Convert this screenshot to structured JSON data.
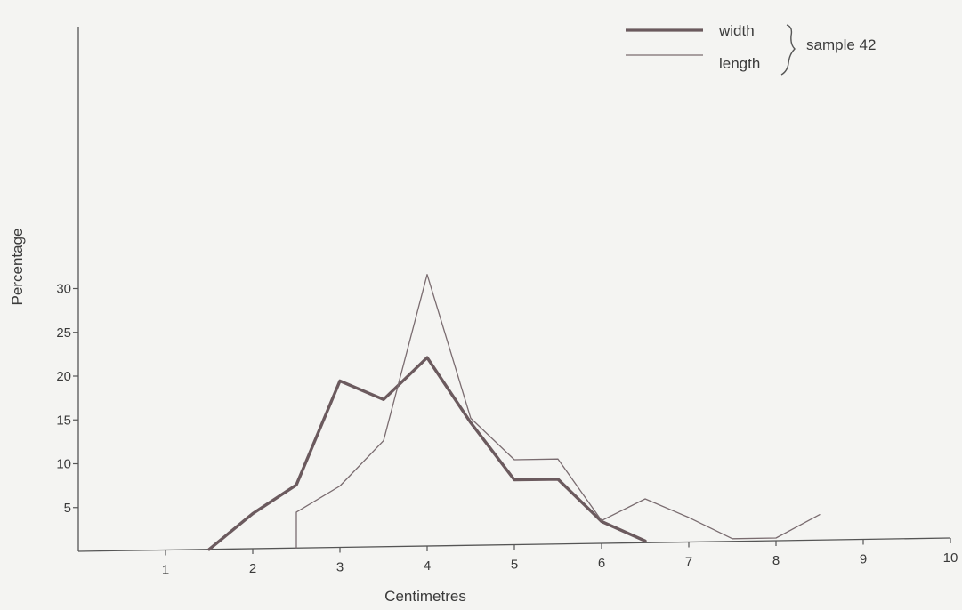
{
  "chart_data": {
    "type": "line",
    "xlabel": "Centimetres",
    "ylabel": "Percentage",
    "xlim": [
      0,
      10
    ],
    "ylim": [
      0,
      30
    ],
    "x_ticks": [
      "1",
      "2",
      "3",
      "4",
      "5",
      "6",
      "7",
      "8",
      "9",
      "10"
    ],
    "y_ticks": [
      "5",
      "10",
      "15",
      "20",
      "25",
      "30"
    ],
    "grid": false,
    "legend_position": "top-right",
    "legend_group_label": "sample 42",
    "series": [
      {
        "name": "width",
        "style": "thick",
        "color": "#6b5a5e",
        "points": [
          [
            1.5,
            0
          ],
          [
            2,
            4
          ],
          [
            2.5,
            7.2
          ],
          [
            3,
            19
          ],
          [
            3.5,
            16.8
          ],
          [
            4,
            21.5
          ],
          [
            4.5,
            14
          ],
          [
            5,
            7.4
          ],
          [
            5.5,
            7.4
          ],
          [
            6,
            2.5
          ],
          [
            6.5,
            0.2
          ]
        ]
      },
      {
        "name": "length",
        "style": "thin",
        "color": "#7a6c70",
        "points": [
          [
            2.5,
            0
          ],
          [
            2.5,
            4.1
          ],
          [
            3,
            7
          ],
          [
            3.5,
            12.1
          ],
          [
            4,
            31
          ],
          [
            4.5,
            14.5
          ],
          [
            5,
            9.7
          ],
          [
            5.5,
            9.7
          ],
          [
            6,
            2.6
          ],
          [
            6.5,
            5
          ],
          [
            7,
            2.8
          ],
          [
            7.5,
            0.3
          ],
          [
            8,
            0.3
          ],
          [
            8.5,
            2.9
          ]
        ]
      }
    ]
  }
}
